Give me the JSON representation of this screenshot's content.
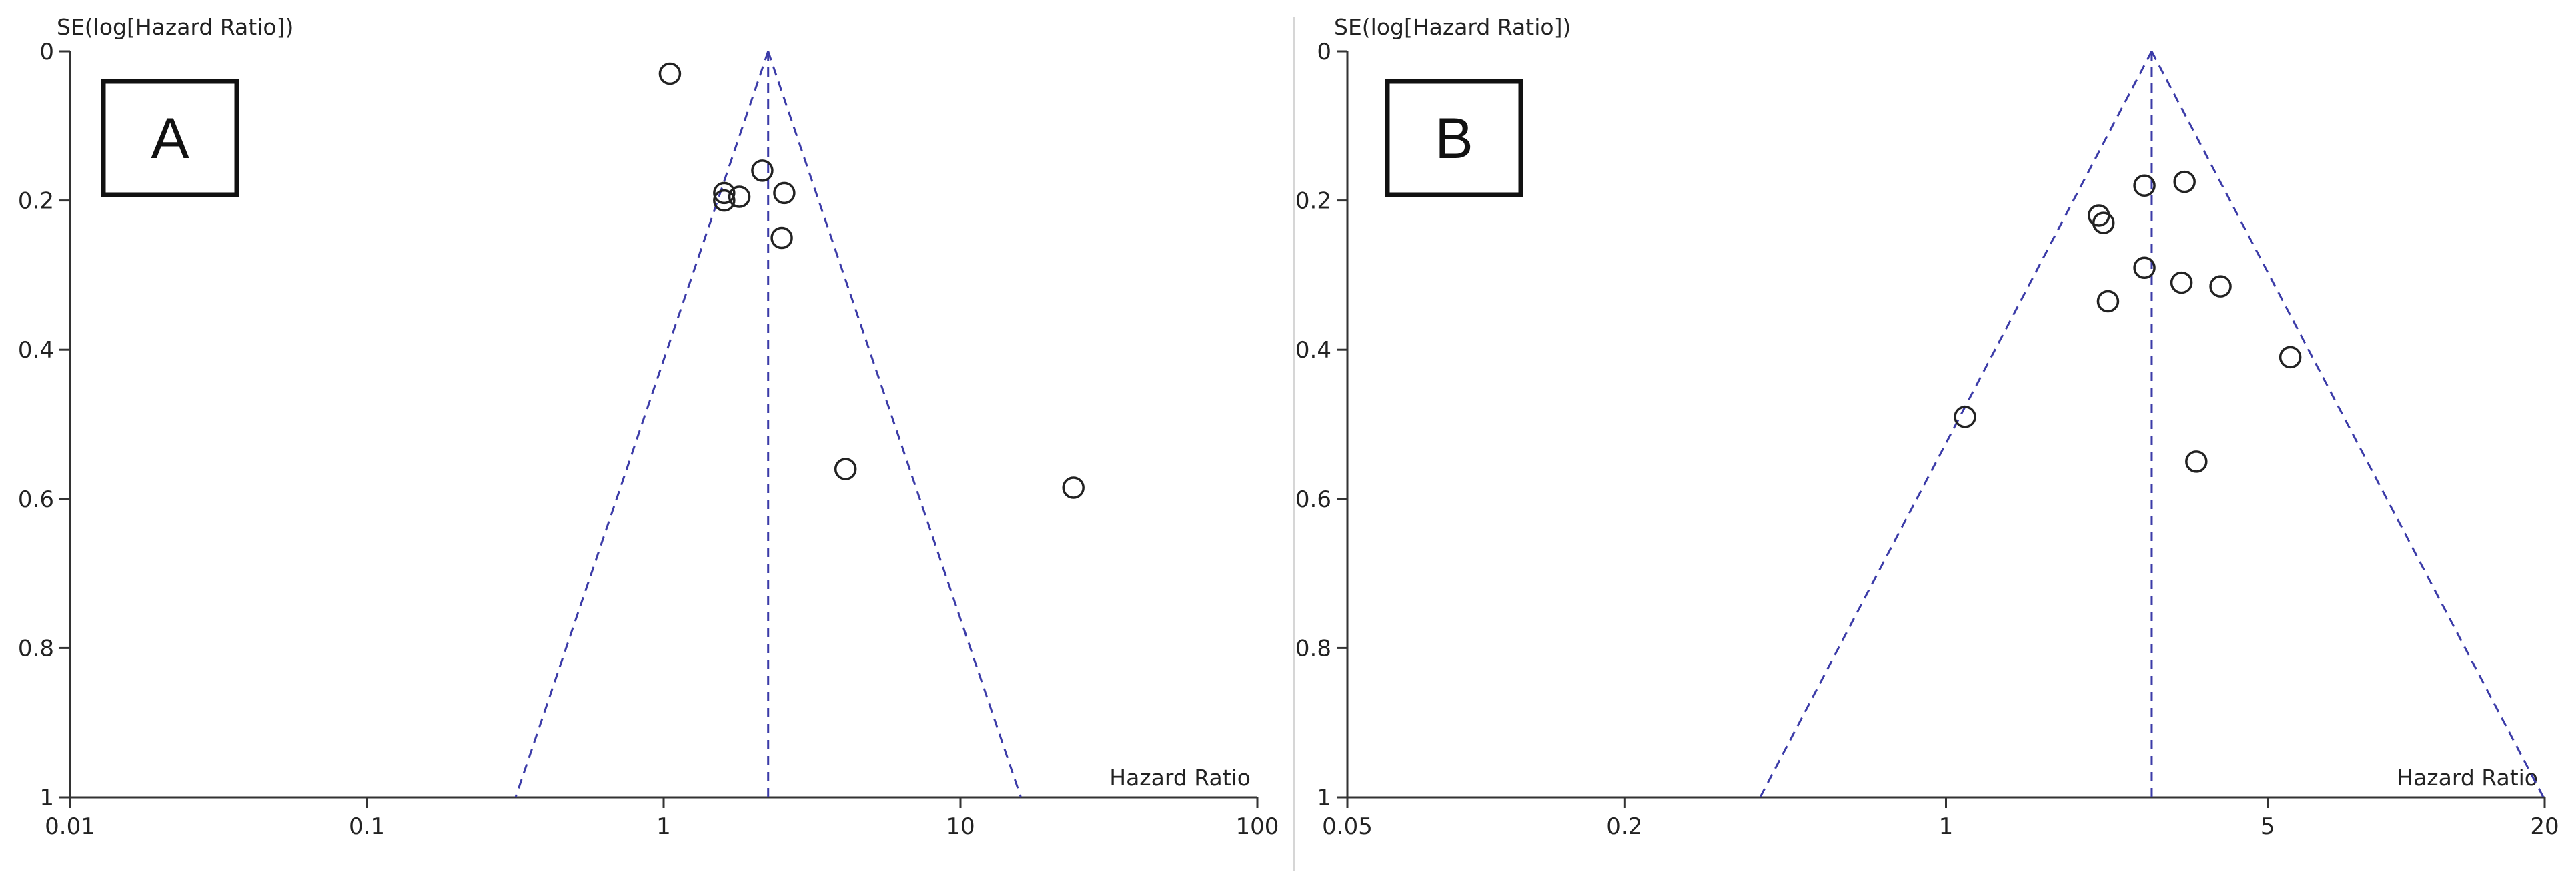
{
  "chart_data": [
    {
      "type": "scatter",
      "subtype": "funnel-plot",
      "panel_label": "A",
      "ylabel": "SE(log[Hazard Ratio])",
      "xlabel": "Hazard Ratio",
      "x_scale": "log",
      "xlim": [
        0.01,
        100
      ],
      "ylim": [
        0,
        1
      ],
      "y_inverted": true,
      "x_ticks": [
        0.01,
        0.1,
        1,
        10,
        100
      ],
      "x_tick_labels": [
        "0.01",
        "0.1",
        "1",
        "10",
        "100"
      ],
      "y_ticks": [
        0,
        0.2,
        0.4,
        0.6,
        0.8,
        1
      ],
      "y_tick_labels": [
        "0",
        "0.2",
        "0.4",
        "0.6",
        "0.8",
        "1"
      ],
      "pooled_estimate": 2.25,
      "grid": false,
      "points": [
        {
          "x": 1.05,
          "y": 0.03
        },
        {
          "x": 1.6,
          "y": 0.19
        },
        {
          "x": 1.6,
          "y": 0.2
        },
        {
          "x": 1.8,
          "y": 0.195
        },
        {
          "x": 2.15,
          "y": 0.16
        },
        {
          "x": 2.55,
          "y": 0.19
        },
        {
          "x": 2.5,
          "y": 0.25
        },
        {
          "x": 4.1,
          "y": 0.56
        },
        {
          "x": 24,
          "y": 0.585
        }
      ]
    },
    {
      "type": "scatter",
      "subtype": "funnel-plot",
      "panel_label": "B",
      "ylabel": "SE(log[Hazard Ratio])",
      "xlabel": "Hazard Ratio",
      "x_scale": "log",
      "xlim": [
        0.05,
        20
      ],
      "ylim": [
        0,
        1
      ],
      "y_inverted": true,
      "x_ticks": [
        0.05,
        0.2,
        1,
        5,
        20
      ],
      "x_tick_labels": [
        "0.05",
        "0.2",
        "1",
        "5",
        "20"
      ],
      "y_ticks": [
        0,
        0.2,
        0.4,
        0.6,
        0.8,
        1
      ],
      "y_tick_labels": [
        "0",
        "0.2",
        "0.4",
        "0.6",
        "0.8",
        "1"
      ],
      "pooled_estimate": 2.8,
      "grid": false,
      "points": [
        {
          "x": 2.15,
          "y": 0.22
        },
        {
          "x": 2.2,
          "y": 0.23
        },
        {
          "x": 2.7,
          "y": 0.18
        },
        {
          "x": 3.3,
          "y": 0.175
        },
        {
          "x": 2.7,
          "y": 0.29
        },
        {
          "x": 3.25,
          "y": 0.31
        },
        {
          "x": 3.95,
          "y": 0.315
        },
        {
          "x": 2.25,
          "y": 0.335
        },
        {
          "x": 5.6,
          "y": 0.41
        },
        {
          "x": 1.1,
          "y": 0.49
        },
        {
          "x": 3.5,
          "y": 0.55
        }
      ]
    }
  ],
  "colors": {
    "funnel_line": "#3b3ba8",
    "axis": "#333333",
    "marker_stroke": "#222222",
    "divider": "#d6d6d6"
  }
}
